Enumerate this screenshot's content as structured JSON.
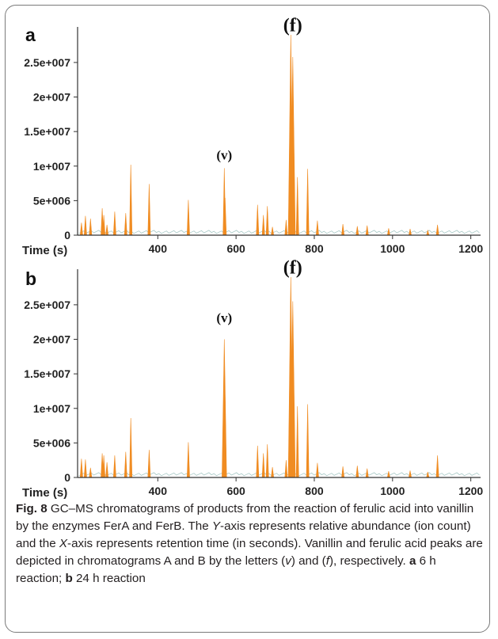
{
  "chart_data": [
    {
      "type": "line",
      "panel_label": "a",
      "xlabel": "Time (s)",
      "x_ticks": [
        400,
        600,
        800,
        1000,
        1200
      ],
      "y_ticks": [
        "0",
        "5e+006",
        "1e+007",
        "1.5e+007",
        "2e+007",
        "2.5e+007"
      ],
      "y_tick_values": [
        0,
        5000000,
        10000000,
        15000000,
        20000000,
        25000000
      ],
      "xlim": [
        195,
        1225
      ],
      "ylim": [
        0,
        29000000
      ],
      "grid": false,
      "series_color": "#f08c22",
      "annotations": [
        {
          "text": "(v)",
          "x": 570,
          "y": 10500000
        },
        {
          "text": "(f)",
          "x": 745,
          "y": 29500000
        }
      ],
      "peaks": [
        {
          "x": 205,
          "y": 1800000
        },
        {
          "x": 215,
          "y": 2800000
        },
        {
          "x": 228,
          "y": 2400000
        },
        {
          "x": 258,
          "y": 3900000
        },
        {
          "x": 262,
          "y": 2900000
        },
        {
          "x": 270,
          "y": 1500000
        },
        {
          "x": 290,
          "y": 3400000
        },
        {
          "x": 318,
          "y": 3200000
        },
        {
          "x": 331,
          "y": 10200000
        },
        {
          "x": 378,
          "y": 7400000
        },
        {
          "x": 478,
          "y": 5100000
        },
        {
          "x": 570,
          "y": 9700000
        },
        {
          "x": 572,
          "y": 5400000
        },
        {
          "x": 655,
          "y": 4400000
        },
        {
          "x": 670,
          "y": 2900000
        },
        {
          "x": 680,
          "y": 4200000
        },
        {
          "x": 693,
          "y": 1200000
        },
        {
          "x": 728,
          "y": 2200000
        },
        {
          "x": 740,
          "y": 29000000
        },
        {
          "x": 745,
          "y": 25800000
        },
        {
          "x": 757,
          "y": 8400000
        },
        {
          "x": 783,
          "y": 9600000
        },
        {
          "x": 808,
          "y": 2100000
        },
        {
          "x": 873,
          "y": 1600000
        },
        {
          "x": 910,
          "y": 1300000
        },
        {
          "x": 935,
          "y": 1400000
        },
        {
          "x": 990,
          "y": 1000000
        },
        {
          "x": 1045,
          "y": 900000
        },
        {
          "x": 1090,
          "y": 700000
        },
        {
          "x": 1115,
          "y": 1500000
        }
      ]
    },
    {
      "type": "line",
      "panel_label": "b",
      "xlabel": "Time (s)",
      "x_ticks": [
        400,
        600,
        800,
        1000,
        1200
      ],
      "y_ticks": [
        "0",
        "5e+006",
        "1e+007",
        "1.5e+007",
        "2e+007",
        "2.5e+007"
      ],
      "y_tick_values": [
        0,
        5000000,
        10000000,
        15000000,
        20000000,
        25000000
      ],
      "xlim": [
        195,
        1225
      ],
      "ylim": [
        0,
        29000000
      ],
      "grid": false,
      "series_color": "#f08c22",
      "annotations": [
        {
          "text": "(v)",
          "x": 570,
          "y": 22000000
        },
        {
          "text": "(f)",
          "x": 745,
          "y": 29500000
        }
      ],
      "peaks": [
        {
          "x": 205,
          "y": 2700000
        },
        {
          "x": 215,
          "y": 2600000
        },
        {
          "x": 228,
          "y": 1400000
        },
        {
          "x": 258,
          "y": 3500000
        },
        {
          "x": 262,
          "y": 3200000
        },
        {
          "x": 270,
          "y": 2200000
        },
        {
          "x": 290,
          "y": 3200000
        },
        {
          "x": 318,
          "y": 3700000
        },
        {
          "x": 331,
          "y": 8600000
        },
        {
          "x": 378,
          "y": 4000000
        },
        {
          "x": 478,
          "y": 5100000
        },
        {
          "x": 570,
          "y": 20000000
        },
        {
          "x": 572,
          "y": 11100000
        },
        {
          "x": 655,
          "y": 4600000
        },
        {
          "x": 670,
          "y": 3500000
        },
        {
          "x": 680,
          "y": 4800000
        },
        {
          "x": 693,
          "y": 1500000
        },
        {
          "x": 728,
          "y": 2500000
        },
        {
          "x": 740,
          "y": 29000000
        },
        {
          "x": 745,
          "y": 25500000
        },
        {
          "x": 757,
          "y": 10300000
        },
        {
          "x": 783,
          "y": 10600000
        },
        {
          "x": 808,
          "y": 2100000
        },
        {
          "x": 873,
          "y": 1600000
        },
        {
          "x": 910,
          "y": 1700000
        },
        {
          "x": 935,
          "y": 1300000
        },
        {
          "x": 990,
          "y": 900000
        },
        {
          "x": 1045,
          "y": 1000000
        },
        {
          "x": 1090,
          "y": 800000
        },
        {
          "x": 1115,
          "y": 3200000
        }
      ]
    }
  ],
  "caption": {
    "fig_label": "Fig. 8",
    "part1": "  GC–MS chromatograms of products from the reaction of ferulic acid into vanillin by the enzymes FerA and FerB. The ",
    "y_axis_letter": "Y",
    "part2": "-axis represents relative abundance (ion count) and the ",
    "x_axis_letter": "X",
    "part3": "-axis represents retention time (in seconds). Vanillin and ferulic acid peaks are depicted in chromatograms A and B by the letters (",
    "v_letter": "v",
    "part4": ") and (",
    "f_letter": "f",
    "part5": "), respectively. ",
    "label_a": "a",
    "text_a": " 6 h reaction; ",
    "label_b": "b",
    "text_b": " 24 h reaction"
  }
}
